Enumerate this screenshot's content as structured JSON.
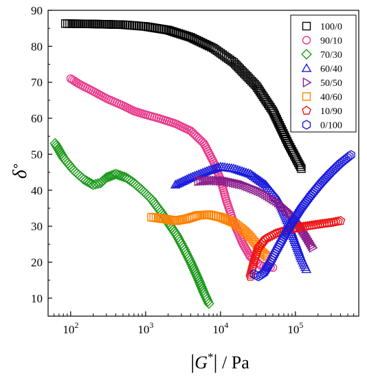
{
  "chart_data": {
    "type": "scatter",
    "xlabel": "|G*| / Pa",
    "ylabel": "δ°",
    "xscale": "log",
    "xlim": [
      50,
      700000
    ],
    "ylim": [
      5,
      90
    ],
    "yticks": [
      10,
      20,
      30,
      40,
      50,
      60,
      70,
      80,
      90
    ],
    "xticks": [
      {
        "value": 100,
        "base": "10",
        "exp": "2"
      },
      {
        "value": 1000,
        "base": "10",
        "exp": "3"
      },
      {
        "value": 10000,
        "base": "10",
        "exp": "4"
      },
      {
        "value": 100000,
        "base": "10",
        "exp": "5"
      }
    ],
    "legend_position": "top-right",
    "series": [
      {
        "name": "100/0",
        "marker": "square",
        "color": "#000000",
        "points": [
          [
            85,
            86.3
          ],
          [
            200,
            86.2
          ],
          [
            500,
            86
          ],
          [
            1000,
            85.5
          ],
          [
            2000,
            84.5
          ],
          [
            4000,
            82.5
          ],
          [
            8000,
            79.5
          ],
          [
            15000,
            75.5
          ],
          [
            30000,
            69
          ],
          [
            50000,
            62
          ],
          [
            80000,
            53
          ],
          [
            120000,
            46
          ]
        ]
      },
      {
        "name": "90/10",
        "marker": "circle",
        "color": "#e8388a",
        "points": [
          [
            100,
            71
          ],
          [
            130,
            69.5
          ],
          [
            200,
            67.5
          ],
          [
            300,
            65.5
          ],
          [
            500,
            63.5
          ],
          [
            700,
            62
          ],
          [
            1000,
            61
          ],
          [
            1500,
            60
          ],
          [
            2500,
            58.5
          ],
          [
            4000,
            56.5
          ],
          [
            6000,
            53
          ],
          [
            8000,
            48
          ],
          [
            10000,
            43
          ],
          [
            12000,
            37
          ],
          [
            15000,
            31
          ],
          [
            20000,
            25
          ],
          [
            25000,
            21.5
          ],
          [
            35000,
            19
          ],
          [
            50000,
            18.5
          ]
        ]
      },
      {
        "name": "70/30",
        "marker": "diamond",
        "color": "#1e9a1e",
        "points": [
          [
            62,
            53
          ],
          [
            80,
            49
          ],
          [
            110,
            45.5
          ],
          [
            150,
            43
          ],
          [
            200,
            41.5
          ],
          [
            250,
            42
          ],
          [
            300,
            43.5
          ],
          [
            400,
            44.5
          ],
          [
            550,
            43.5
          ],
          [
            700,
            42
          ],
          [
            900,
            40
          ],
          [
            1200,
            37.5
          ],
          [
            1600,
            34
          ],
          [
            2000,
            31
          ],
          [
            2600,
            27.5
          ],
          [
            3200,
            24
          ],
          [
            4000,
            20
          ],
          [
            5000,
            15.5
          ],
          [
            6000,
            11.5
          ],
          [
            7000,
            8.5
          ]
        ]
      },
      {
        "name": "60/40",
        "marker": "triangle",
        "color": "#1a1adc",
        "points": [
          [
            2500,
            41.5
          ],
          [
            4000,
            43.5
          ],
          [
            7000,
            45.5
          ],
          [
            10000,
            46.5
          ],
          [
            15000,
            46
          ],
          [
            25000,
            44.5
          ],
          [
            40000,
            41.5
          ],
          [
            60000,
            37
          ],
          [
            80000,
            31
          ],
          [
            100000,
            25.5
          ],
          [
            120000,
            21
          ],
          [
            140000,
            18
          ]
        ]
      },
      {
        "name": "50/50",
        "marker": "triangle-right",
        "color": "#8b1a8b",
        "points": [
          [
            5000,
            42.5
          ],
          [
            8000,
            42.7
          ],
          [
            12000,
            42.5
          ],
          [
            20000,
            41.5
          ],
          [
            35000,
            39.5
          ],
          [
            55000,
            37
          ],
          [
            80000,
            34
          ],
          [
            110000,
            30.5
          ],
          [
            140000,
            27
          ],
          [
            170000,
            24
          ]
        ]
      },
      {
        "name": "40/60",
        "marker": "square",
        "color": "#ff8000",
        "points": [
          [
            1200,
            32.5
          ],
          [
            1800,
            32
          ],
          [
            2500,
            31.5
          ],
          [
            3500,
            32
          ],
          [
            5000,
            33
          ],
          [
            7000,
            33.2
          ],
          [
            10000,
            32.5
          ],
          [
            15000,
            31
          ],
          [
            20000,
            29
          ],
          [
            25000,
            27
          ],
          [
            30000,
            25
          ],
          [
            35000,
            23
          ],
          [
            42000,
            21.5
          ]
        ]
      },
      {
        "name": "10/90",
        "marker": "pentagon",
        "color": "#ee1111",
        "points": [
          [
            25000,
            16
          ],
          [
            28000,
            20
          ],
          [
            32000,
            24
          ],
          [
            40000,
            26.5
          ],
          [
            55000,
            28
          ],
          [
            80000,
            29
          ],
          [
            120000,
            29.8
          ],
          [
            200000,
            30.5
          ],
          [
            300000,
            31
          ],
          [
            400000,
            31.5
          ]
        ]
      },
      {
        "name": "0/100",
        "marker": "hexagon",
        "color": "#1a1adc",
        "points": [
          [
            28000,
            16.7
          ],
          [
            32000,
            16
          ],
          [
            38000,
            17
          ],
          [
            45000,
            19.5
          ],
          [
            55000,
            23
          ],
          [
            70000,
            27
          ],
          [
            90000,
            31
          ],
          [
            120000,
            35
          ],
          [
            160000,
            38.5
          ],
          [
            220000,
            42
          ],
          [
            300000,
            45
          ],
          [
            400000,
            47.5
          ],
          [
            550000,
            49.8
          ]
        ]
      }
    ]
  }
}
